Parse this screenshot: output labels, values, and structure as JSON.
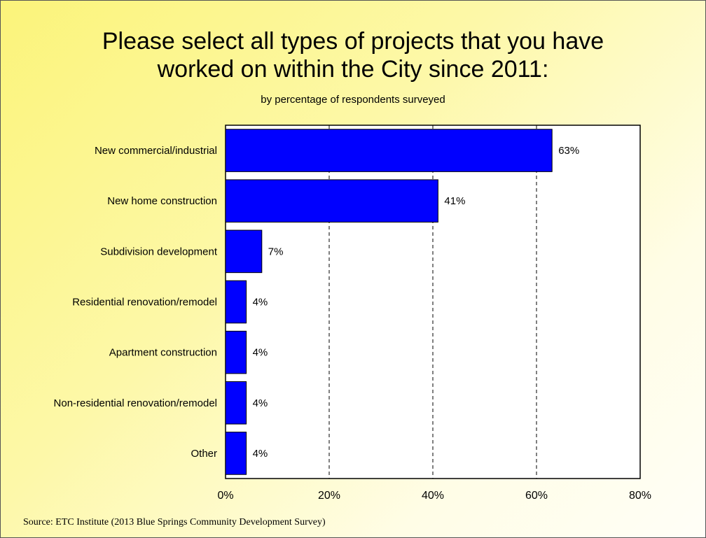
{
  "chart_data": {
    "type": "bar",
    "orientation": "horizontal",
    "title": "Please select all types of projects that you have worked on within the City since 2011:",
    "subtitle": "by percentage of respondents surveyed",
    "categories": [
      "New commercial/industrial",
      "New home construction",
      "Subdivision development",
      "Residential renovation/remodel",
      "Apartment construction",
      "Non-residential renovation/remodel",
      "Other"
    ],
    "values": [
      63,
      41,
      7,
      4,
      4,
      4,
      4
    ],
    "data_labels": [
      "63%",
      "41%",
      "7%",
      "4%",
      "4%",
      "4%",
      "4%"
    ],
    "xlim": [
      0,
      80
    ],
    "x_ticks": [
      0,
      20,
      40,
      60,
      80
    ],
    "x_tick_labels": [
      "0%",
      "20%",
      "40%",
      "60%",
      "80%"
    ],
    "grid": "vertical dashed",
    "bar_color": "#0000ff",
    "source": "Source: ETC Institute (2013 Blue Springs Community Development Survey)"
  }
}
